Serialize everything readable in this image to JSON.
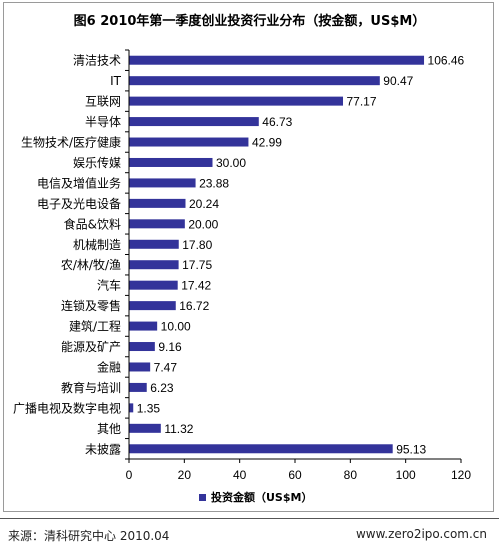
{
  "chart_data": {
    "type": "bar",
    "orientation": "horizontal",
    "title": "图6  2010年第一季度创业投资行业分布（按金额，US$M）",
    "categories": [
      "清洁技术",
      "IT",
      "互联网",
      "半导体",
      "生物技术/医疗健康",
      "娱乐传媒",
      "电信及增值业务",
      "电子及光电设备",
      "食品&饮料",
      "机械制造",
      "农/林/牧/渔",
      "汽车",
      "连锁及零售",
      "建筑/工程",
      "能源及矿产",
      "金融",
      "教育与培训",
      "广播电视及数字电视",
      "其他",
      "未披露"
    ],
    "series": [
      {
        "name": "投资金额（US$M）",
        "values": [
          106.46,
          90.47,
          77.17,
          46.73,
          42.99,
          30.0,
          23.88,
          20.24,
          20.0,
          17.8,
          17.75,
          17.42,
          16.72,
          10.0,
          9.16,
          7.47,
          6.23,
          1.35,
          11.32,
          95.13
        ],
        "labels": [
          "106.46",
          "90.47",
          "77.17",
          "46.73",
          "42.99",
          "30.00",
          "23.88",
          "20.24",
          "20.00",
          "17.80",
          "17.75",
          "17.42",
          "16.72",
          "10.00",
          "9.16",
          "7.47",
          "6.23",
          "1.35",
          "11.32",
          "95.13"
        ]
      }
    ],
    "xlim": [
      0,
      120
    ],
    "xticks": [
      "0",
      "20",
      "40",
      "60",
      "80",
      "100",
      "120"
    ],
    "grid": false,
    "legend": "bottom",
    "bar_color": "#33339a"
  },
  "footer": {
    "source": "来源：清科研究中心 2010.04",
    "site": "www.zero2ipo.com.cn"
  }
}
